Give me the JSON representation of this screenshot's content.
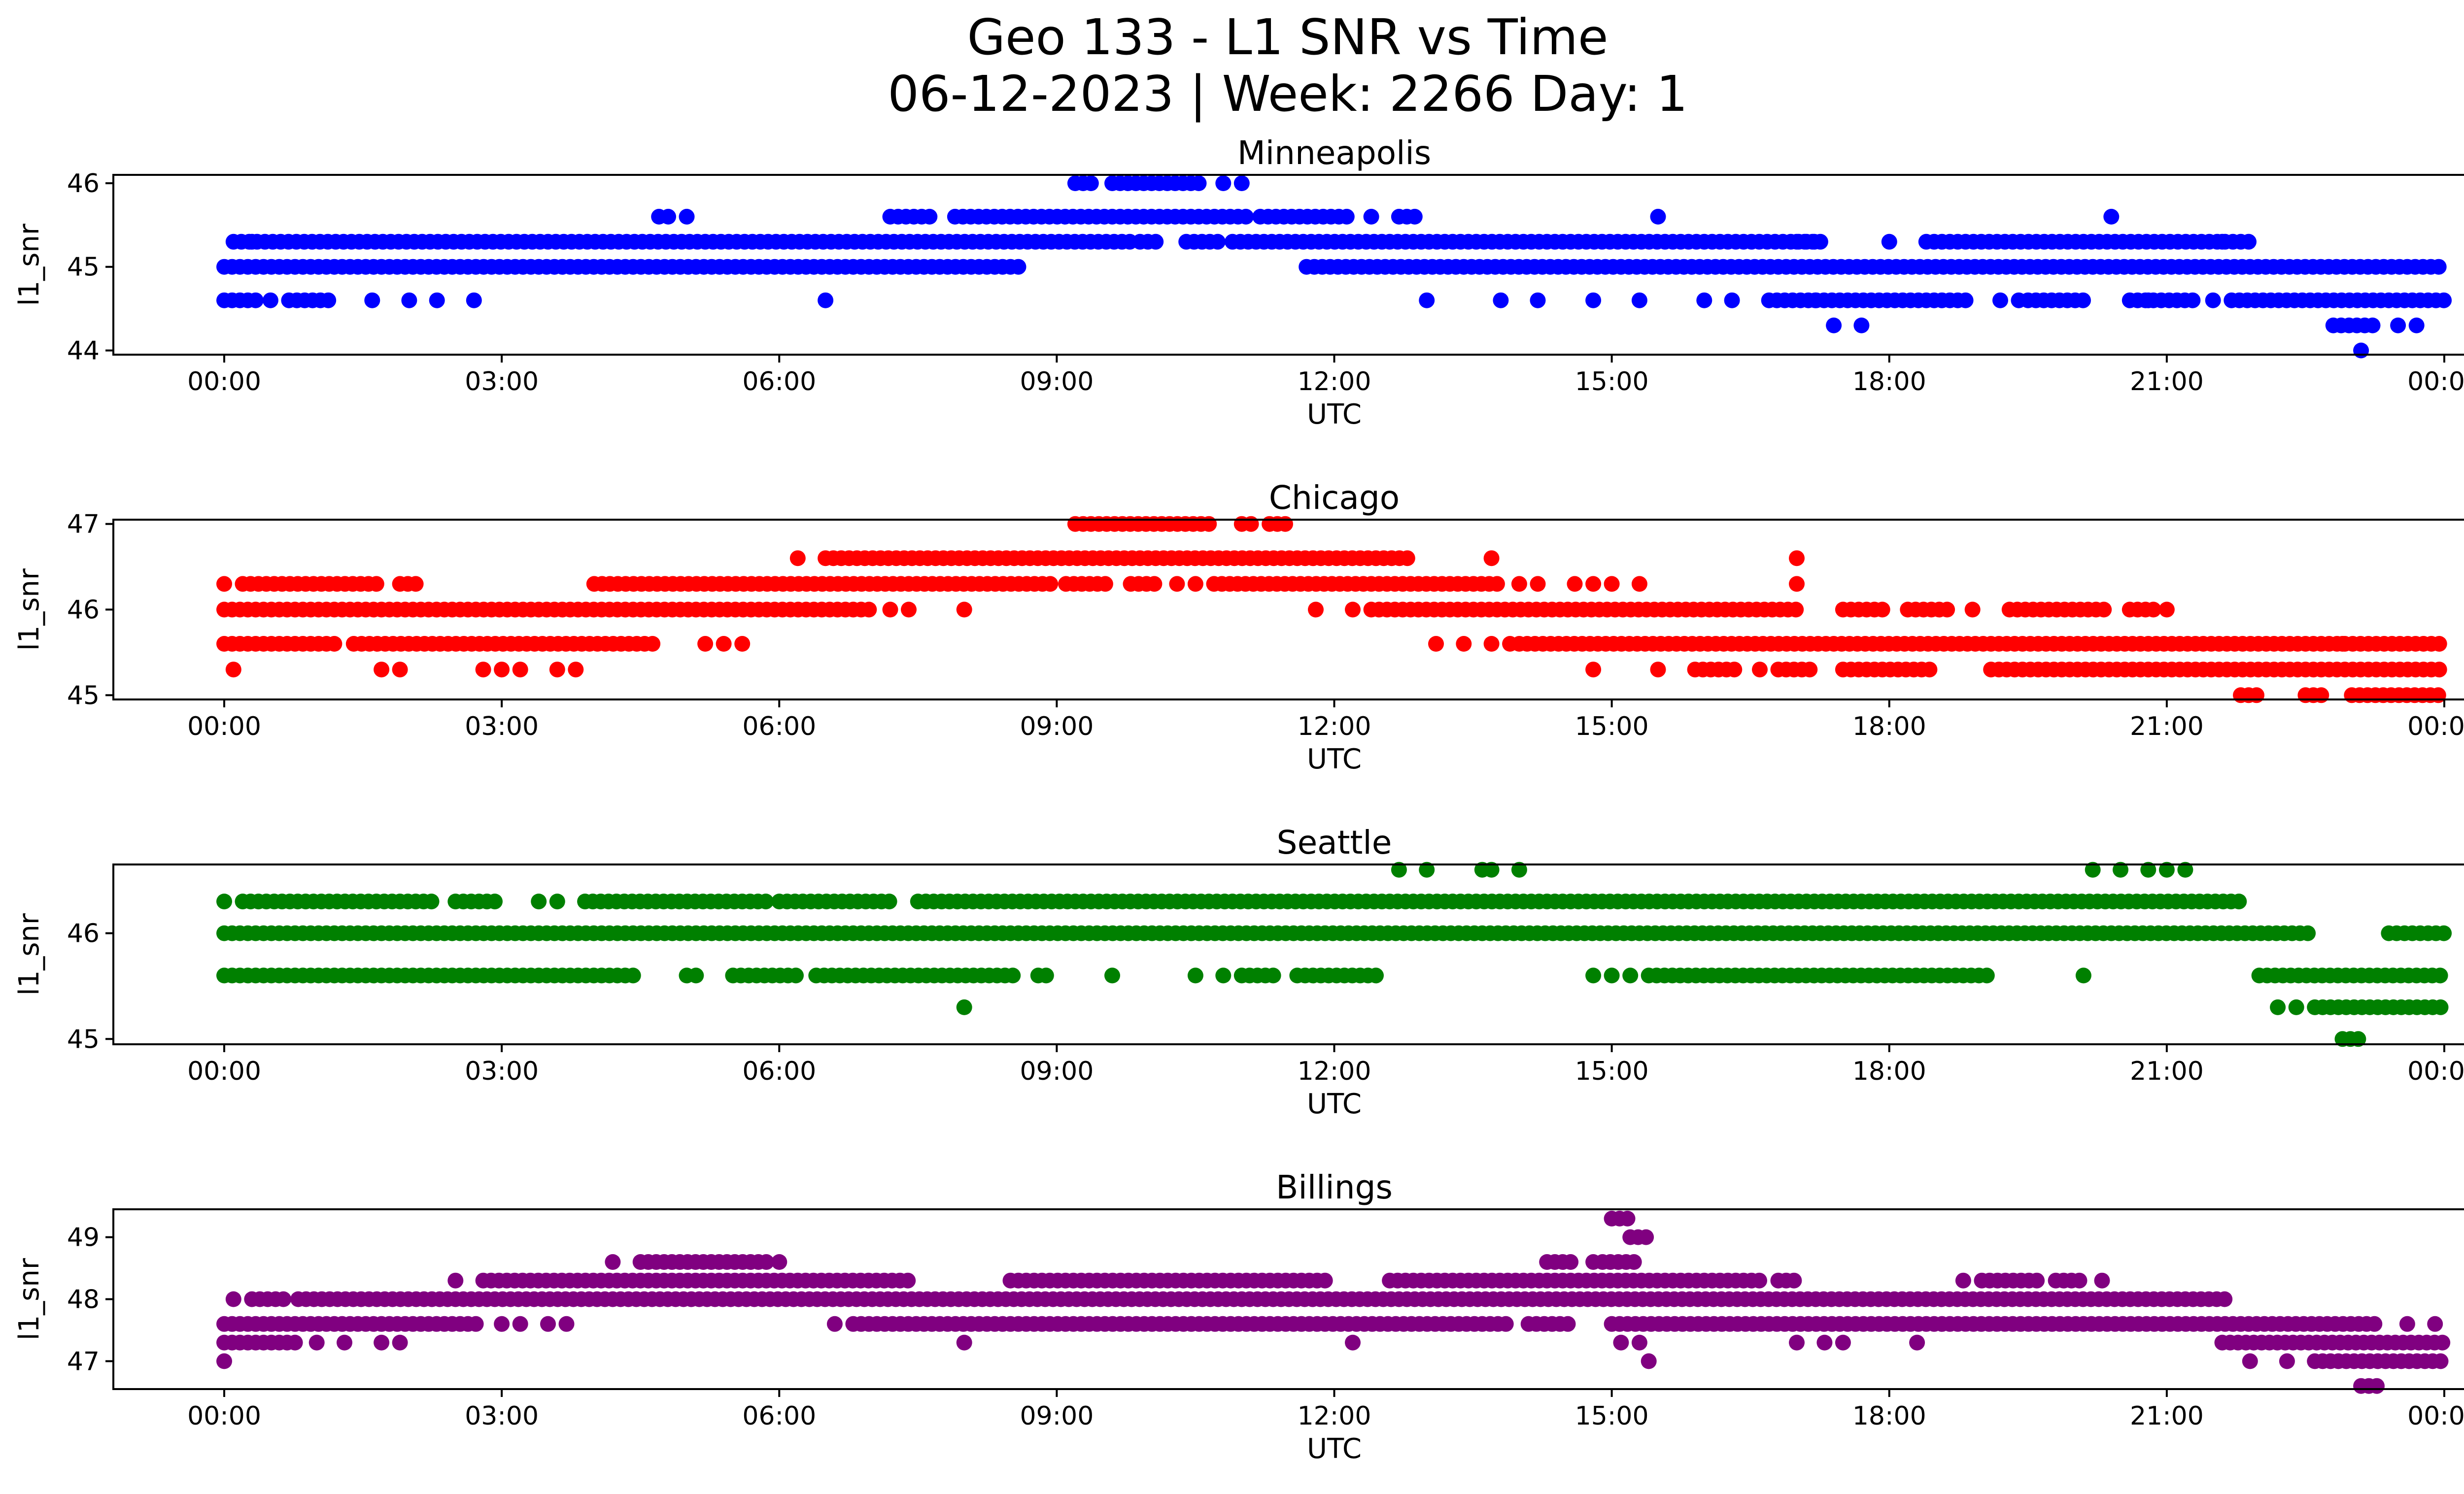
{
  "figure": {
    "title_line1": "Geo 133 - L1 SNR vs Time",
    "title_line2": "06-12-2023 | Week: 2266 Day: 1"
  },
  "chart_data": [
    {
      "type": "scatter",
      "title": "Minneapolis",
      "xlabel": "UTC",
      "ylabel": "l1_snr",
      "color": "#0000ff",
      "xlim": [
        "00:00",
        "24:00"
      ],
      "x_ticks": [
        "00:00",
        "03:00",
        "06:00",
        "09:00",
        "12:00",
        "15:00",
        "18:00",
        "21:00",
        "00:00"
      ],
      "ylim": [
        43.95,
        46.1
      ],
      "y_ticks": [
        44,
        45,
        46
      ],
      "series": [
        {
          "y": 45.0,
          "ranges": [
            [
              0.0,
              8.6
            ],
            [
              11.7,
              24.0
            ]
          ]
        },
        {
          "y": 45.3,
          "ranges": [
            [
              0.1,
              9.8
            ],
            [
              9.9,
              10.1
            ],
            [
              10.4,
              10.8
            ],
            [
              10.9,
              17.2
            ],
            [
              17.0,
              17.3
            ],
            [
              18.4,
              21.9
            ]
          ],
          "points": [
            0.3,
            18.0,
            21.6
          ]
        },
        {
          "y": 44.6,
          "ranges": [
            [
              0.0,
              0.4
            ],
            [
              0.7,
              1.2
            ],
            [
              16.7,
              18.9
            ],
            [
              19.5,
              20.1
            ],
            [
              20.6,
              21.3
            ],
            [
              21.7,
              24.0
            ]
          ],
          "points": [
            0.5,
            1.6,
            2.0,
            2.3,
            2.7,
            6.5,
            13.0,
            13.8,
            14.2,
            14.8,
            15.3,
            16.0,
            16.3,
            17.2,
            19.2,
            19.4,
            20.8,
            21.5
          ]
        },
        {
          "y": 45.6,
          "ranges": [
            [
              7.2,
              7.7
            ],
            [
              7.9,
              11.1
            ],
            [
              11.2,
              12.2
            ],
            [
              12.7,
              12.9
            ]
          ],
          "points": [
            4.7,
            4.8,
            5.0,
            12.4,
            15.5,
            20.4
          ]
        },
        {
          "y": 46.0,
          "ranges": [
            [
              9.2,
              9.4
            ],
            [
              9.6,
              10.6
            ]
          ],
          "points": [
            10.8,
            11.0
          ]
        },
        {
          "y": 44.3,
          "ranges": [
            [
              22.8,
              23.3
            ]
          ],
          "points": [
            17.4,
            17.7,
            23.5,
            23.7
          ]
        },
        {
          "y": 44.0,
          "ranges": [],
          "points": [
            23.1
          ]
        }
      ]
    },
    {
      "type": "scatter",
      "title": "Chicago",
      "xlabel": "UTC",
      "ylabel": "l1_snr",
      "color": "#ff0000",
      "xlim": [
        "00:00",
        "24:00"
      ],
      "x_ticks": [
        "00:00",
        "03:00",
        "06:00",
        "09:00",
        "12:00",
        "15:00",
        "18:00",
        "21:00",
        "00:00"
      ],
      "ylim": [
        44.95,
        47.05
      ],
      "y_ticks": [
        45,
        46,
        47
      ],
      "series": [
        {
          "y": 46.0,
          "ranges": [
            [
              0.0,
              7.0
            ],
            [
              12.4,
              17.0
            ],
            [
              17.5,
              18.0
            ],
            [
              18.2,
              18.7
            ],
            [
              19.3,
              20.4
            ],
            [
              20.6,
              20.9
            ]
          ],
          "points": [
            7.2,
            7.4,
            8.0,
            11.8,
            12.2,
            18.9,
            21.0
          ]
        },
        {
          "y": 46.3,
          "ranges": [
            [
              0.2,
              1.7
            ],
            [
              1.9,
              2.1
            ],
            [
              4.0,
              9.0
            ],
            [
              9.1,
              9.6
            ],
            [
              9.8,
              10.1
            ],
            [
              10.7,
              13.8
            ]
          ],
          "points": [
            0.0,
            10.3,
            10.5,
            14.0,
            14.2,
            14.6,
            14.8,
            15.0,
            15.3,
            17.0
          ]
        },
        {
          "y": 46.6,
          "ranges": [
            [
              6.5,
              12.8
            ]
          ],
          "points": [
            6.2,
            13.7,
            17.0
          ]
        },
        {
          "y": 47.0,
          "ranges": [
            [
              9.2,
              10.7
            ],
            [
              11.3,
              11.5
            ]
          ],
          "points": [
            11.0,
            11.1
          ]
        },
        {
          "y": 45.6,
          "ranges": [
            [
              0.0,
              1.2
            ],
            [
              1.4,
              4.7
            ],
            [
              14.0,
              24.0
            ]
          ],
          "points": [
            5.2,
            5.4,
            5.6,
            13.1,
            13.4,
            13.7,
            13.9,
            22.9
          ]
        },
        {
          "y": 45.3,
          "ranges": [
            [
              15.9,
              16.4
            ],
            [
              16.8,
              17.2
            ],
            [
              17.5,
              18.5
            ],
            [
              19.1,
              24.0
            ]
          ],
          "points": [
            0.1,
            1.7,
            1.9,
            2.8,
            3.0,
            3.2,
            3.6,
            3.8,
            14.8,
            15.5,
            16.6
          ]
        },
        {
          "y": 45.0,
          "ranges": [
            [
              21.8,
              22.0
            ],
            [
              22.5,
              22.7
            ],
            [
              23.0,
              24.0
            ]
          ],
          "points": []
        }
      ]
    },
    {
      "type": "scatter",
      "title": "Seattle",
      "xlabel": "UTC",
      "ylabel": "l1_snr",
      "color": "#008000",
      "xlim": [
        "00:00",
        "24:00"
      ],
      "x_ticks": [
        "00:00",
        "03:00",
        "06:00",
        "09:00",
        "12:00",
        "15:00",
        "18:00",
        "21:00",
        "00:00"
      ],
      "ylim": [
        44.95,
        46.65
      ],
      "y_ticks": [
        45,
        46
      ],
      "series": [
        {
          "y": 46.0,
          "ranges": [
            [
              0.0,
              22.6
            ],
            [
              23.4,
              24.0
            ]
          ],
          "points": []
        },
        {
          "y": 46.3,
          "ranges": [
            [
              0.2,
              2.3
            ],
            [
              2.5,
              3.0
            ],
            [
              3.9,
              5.9
            ],
            [
              6.0,
              7.2
            ],
            [
              7.5,
              21.8
            ]
          ],
          "points": [
            0.0,
            3.4,
            3.6
          ]
        },
        {
          "y": 46.6,
          "ranges": [],
          "points": [
            12.7,
            13.0,
            13.6,
            13.7,
            14.0,
            20.2,
            20.5,
            20.8,
            21.0,
            21.2
          ]
        },
        {
          "y": 45.6,
          "ranges": [
            [
              0.0,
              4.5
            ],
            [
              5.5,
              6.2
            ],
            [
              6.4,
              8.6
            ],
            [
              8.8,
              8.9
            ],
            [
              11.0,
              11.4
            ],
            [
              11.6,
              12.5
            ],
            [
              15.4,
              19.1
            ],
            [
              22.0,
              24.0
            ]
          ],
          "points": [
            5.0,
            5.1,
            9.6,
            10.5,
            10.8,
            14.8,
            15.0,
            15.2,
            20.1
          ]
        },
        {
          "y": 45.3,
          "ranges": [
            [
              22.6,
              24.0
            ]
          ],
          "points": [
            8.0,
            22.2,
            22.4
          ]
        },
        {
          "y": 45.0,
          "ranges": [
            [
              22.9,
              23.1
            ]
          ],
          "points": []
        }
      ]
    },
    {
      "type": "scatter",
      "title": "Billings",
      "xlabel": "UTC",
      "ylabel": "l1_snr",
      "color": "#800080",
      "xlim": [
        "00:00",
        "24:00"
      ],
      "x_ticks": [
        "00:00",
        "03:00",
        "06:00",
        "09:00",
        "12:00",
        "15:00",
        "18:00",
        "21:00",
        "00:00"
      ],
      "ylim": [
        46.55,
        49.45
      ],
      "y_ticks": [
        47,
        48,
        49
      ],
      "series": [
        {
          "y": 48.0,
          "ranges": [
            [
              0.3,
              0.7
            ],
            [
              0.8,
              21.7
            ]
          ],
          "points": [
            0.1
          ]
        },
        {
          "y": 47.6,
          "ranges": [
            [
              0.0,
              2.8
            ],
            [
              6.8,
              13.9
            ],
            [
              14.1,
              14.6
            ],
            [
              15.0,
              23.3
            ]
          ],
          "points": [
            3.0,
            3.2,
            3.5,
            3.7,
            6.6,
            23.6,
            23.9
          ]
        },
        {
          "y": 47.3,
          "ranges": [
            [
              0.0,
              0.8
            ],
            [
              21.6,
              24.0
            ]
          ],
          "points": [
            1.0,
            1.3,
            1.7,
            1.9,
            8.0,
            12.2,
            15.1,
            15.3,
            17.0,
            17.3,
            17.5,
            18.3
          ]
        },
        {
          "y": 47.0,
          "ranges": [
            [
              22.6,
              24.0
            ]
          ],
          "points": [
            0.0,
            21.9,
            22.3,
            15.4
          ]
        },
        {
          "y": 48.3,
          "ranges": [
            [
              2.8,
              7.4
            ],
            [
              8.5,
              11.9
            ],
            [
              12.6,
              16.6
            ],
            [
              16.8,
              17.0
            ],
            [
              19.0,
              19.6
            ],
            [
              19.8,
              20.1
            ]
          ],
          "points": [
            2.5,
            18.8,
            20.3
          ]
        },
        {
          "y": 48.6,
          "ranges": [
            [
              4.5,
              5.9
            ],
            [
              14.3,
              14.6
            ],
            [
              14.9,
              15.3
            ]
          ],
          "points": [
            4.2,
            6.0,
            14.8
          ]
        },
        {
          "y": 49.0,
          "ranges": [
            [
              15.2,
              15.4
            ]
          ],
          "points": []
        },
        {
          "y": 49.3,
          "ranges": [
            [
              15.0,
              15.2
            ]
          ],
          "points": []
        },
        {
          "y": 46.6,
          "ranges": [
            [
              23.1,
              23.3
            ]
          ],
          "points": []
        }
      ]
    }
  ]
}
